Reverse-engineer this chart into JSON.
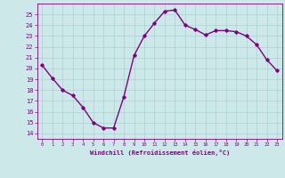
{
  "x": [
    0,
    1,
    2,
    3,
    4,
    5,
    6,
    7,
    8,
    9,
    10,
    11,
    12,
    13,
    14,
    15,
    16,
    17,
    18,
    19,
    20,
    21,
    22,
    23
  ],
  "y": [
    20.3,
    19.1,
    18.0,
    17.5,
    16.4,
    15.0,
    14.5,
    14.5,
    17.4,
    21.2,
    23.0,
    24.2,
    25.3,
    25.4,
    24.0,
    23.6,
    23.1,
    23.5,
    23.5,
    23.4,
    23.0,
    22.2,
    20.8,
    19.8
  ],
  "xlim": [
    -0.5,
    23.5
  ],
  "ylim": [
    13.5,
    26.0
  ],
  "yticks": [
    14,
    15,
    16,
    17,
    18,
    19,
    20,
    21,
    22,
    23,
    24,
    25
  ],
  "xticks": [
    0,
    1,
    2,
    3,
    4,
    5,
    6,
    7,
    8,
    9,
    10,
    11,
    12,
    13,
    14,
    15,
    16,
    17,
    18,
    19,
    20,
    21,
    22,
    23
  ],
  "xlabel": "Windchill (Refroidissement éolien,°C)",
  "line_color": "#800080",
  "marker": "D",
  "marker_size": 1.8,
  "bg_color": "#cce8e8",
  "grid_color": "#aad0d0",
  "tick_color": "#800080",
  "line_width": 1.0
}
